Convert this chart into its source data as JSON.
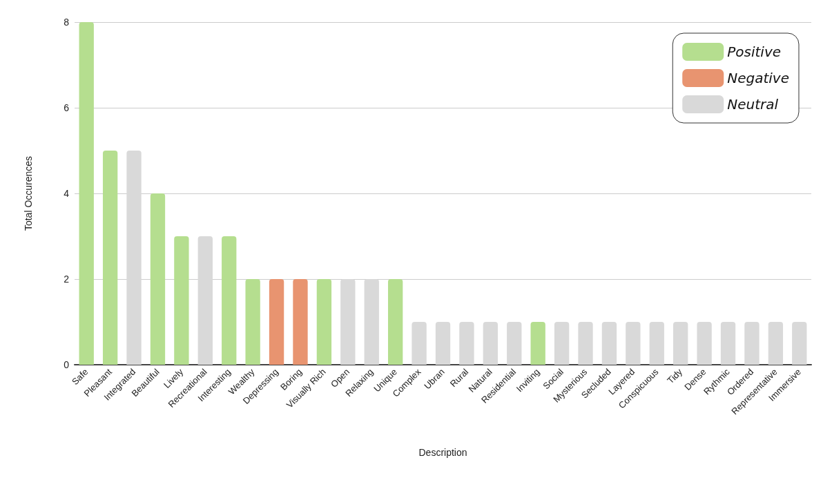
{
  "chart_data": {
    "type": "bar",
    "xlabel": "Description",
    "ylabel": "Total Occurences",
    "categories": [
      "Safe",
      "Pleasant",
      "Integrated",
      "Beautiful",
      "Lively",
      "Recreational",
      "Interesting",
      "Wealthy",
      "Depressing",
      "Boring",
      "Visually Rich",
      "Open",
      "Relaxing",
      "Unique",
      "Complex",
      "Ubran",
      "Rural",
      "Natural",
      "Residential",
      "Inviting",
      "Social",
      "Mysterious",
      "Secluded",
      "Layered",
      "Conspicuous",
      "Tidy",
      "Dense",
      "Rythmic",
      "Ordered",
      "Representative",
      "Immersive"
    ],
    "stacked": true,
    "series": [
      {
        "name": "Positive",
        "color": "#b5de8f",
        "values": [
          8,
          5,
          null,
          4,
          3,
          null,
          3,
          2,
          null,
          null,
          2,
          null,
          null,
          2,
          null,
          null,
          null,
          null,
          null,
          1,
          null,
          null,
          null,
          null,
          null,
          null,
          null,
          null,
          null,
          null,
          null
        ]
      },
      {
        "name": "Negative",
        "color": "#e89470",
        "values": [
          null,
          null,
          null,
          null,
          null,
          null,
          null,
          null,
          2,
          2,
          null,
          null,
          null,
          null,
          null,
          null,
          null,
          null,
          null,
          null,
          null,
          null,
          null,
          null,
          null,
          null,
          null,
          null,
          null,
          null,
          null
        ]
      },
      {
        "name": "Neutral",
        "color": "#d9d9d9",
        "values": [
          null,
          null,
          5,
          null,
          null,
          3,
          null,
          null,
          null,
          null,
          null,
          2,
          2,
          null,
          1,
          1,
          1,
          1,
          1,
          null,
          1,
          1,
          1,
          1,
          1,
          1,
          1,
          1,
          1,
          1,
          1
        ]
      }
    ],
    "ylim": [
      0,
      8
    ],
    "yticks": [
      0,
      2,
      4,
      6,
      8
    ],
    "grid": "y",
    "legend": "top right"
  }
}
